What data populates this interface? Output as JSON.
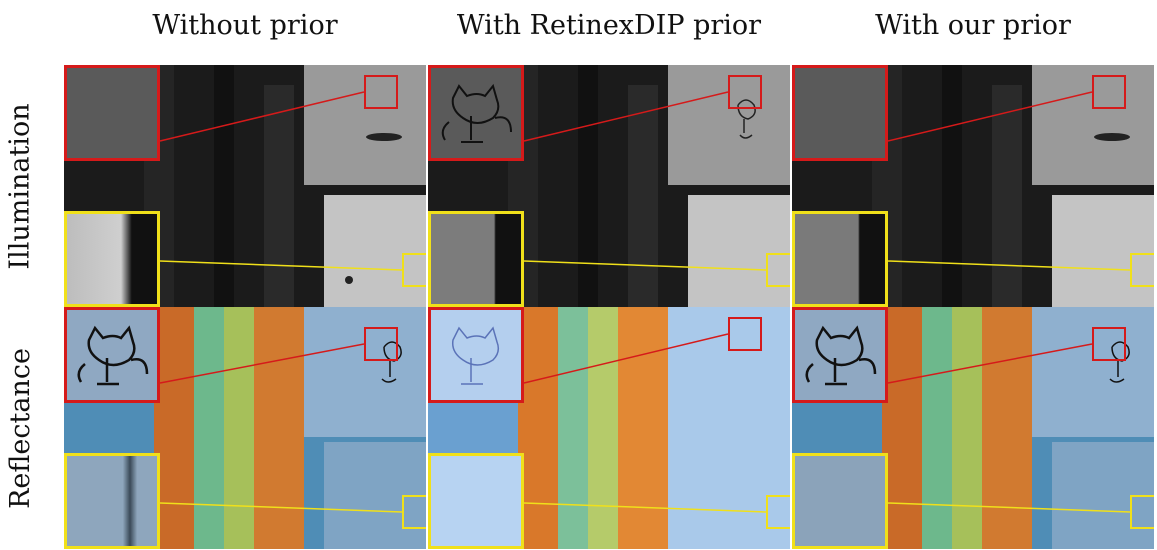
{
  "columns": [
    {
      "title": "Without prior"
    },
    {
      "title": "With RetinexDIP prior"
    },
    {
      "title": "With our prior"
    }
  ],
  "rows": [
    {
      "label": "Illumination"
    },
    {
      "label": "Reflectance"
    }
  ],
  "colors": {
    "red_inset": "#d51a1a",
    "yellow_inset": "#f0e01a"
  }
}
